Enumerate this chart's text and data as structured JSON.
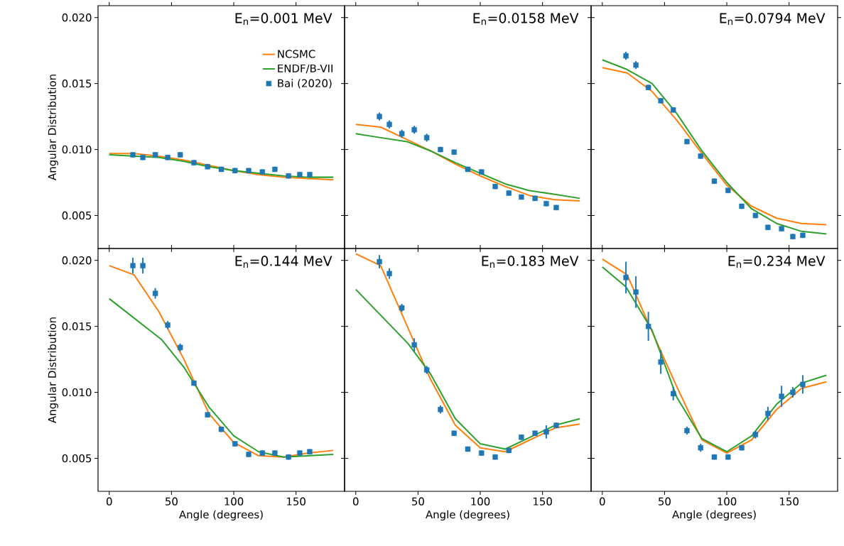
{
  "chart_data": [
    {
      "type": "line",
      "title": "E$_{n}$=0.001 MeV",
      "ylabel": "Angular Distribution",
      "xlim": [
        -9,
        189
      ],
      "ylim": [
        0.0025,
        0.0209
      ],
      "xticks": [
        0,
        50,
        100,
        150
      ],
      "yticks": [
        {
          "value": 0.005,
          "label": "0.005"
        },
        {
          "value": 0.01,
          "label": "0.010"
        },
        {
          "value": 0.015,
          "label": "0.015"
        },
        {
          "value": 0.02,
          "label": "0.020"
        }
      ],
      "tick_labels": "y",
      "legend": "top right",
      "grid": false,
      "line_style": "solid",
      "series": [
        {
          "name": "NCSMC",
          "marker": "none",
          "color": "#ff7f0e",
          "x": [
            0,
            20,
            40,
            60,
            80,
            100,
            120,
            140,
            160,
            180
          ],
          "values": [
            0.0097,
            0.0097,
            0.0095,
            0.0092,
            0.0088,
            0.0084,
            0.0081,
            0.0079,
            0.0078,
            0.0077
          ]
        },
        {
          "name": "ENDF/B-VII",
          "marker": "none",
          "color": "#2ca02c",
          "x": [
            0,
            20,
            40,
            60,
            80,
            100,
            120,
            140,
            160,
            180
          ],
          "values": [
            0.0096,
            0.0095,
            0.0094,
            0.0091,
            0.0087,
            0.0084,
            0.0082,
            0.008,
            0.0079,
            0.0079
          ]
        },
        {
          "name": "Bai (2020)",
          "type": "scatter",
          "marker": "square",
          "color": "#1f77b4",
          "x": [
            19,
            27,
            37,
            47,
            57,
            68,
            79,
            90,
            101,
            112,
            123,
            133,
            144,
            153,
            161
          ],
          "values": [
            0.0096,
            0.0094,
            0.0096,
            0.0094,
            0.0096,
            0.009,
            0.0087,
            0.0085,
            0.0084,
            0.0084,
            0.0083,
            0.0085,
            0.008,
            0.0081,
            0.0081
          ],
          "errors": [
            0.0002,
            0.0002,
            0.0002,
            0.0002,
            0.0002,
            0.0002,
            0.0002,
            0.0002,
            0.0002,
            0.0002,
            0.0002,
            0.0002,
            0.0002,
            0.0002,
            0.0002
          ]
        }
      ]
    },
    {
      "type": "line",
      "title": "E$_{n}$=0.0158 MeV",
      "xlim": [
        -9,
        189
      ],
      "ylim": [
        0.0025,
        0.0209
      ],
      "xticks": [
        0,
        50,
        100,
        150
      ],
      "yticks": [
        0.005,
        0.01,
        0.015,
        0.02
      ],
      "tick_labels": false,
      "grid": false,
      "line_style": "solid",
      "series": [
        {
          "marker": "none",
          "color": "#ff7f0e",
          "x": [
            0,
            20,
            40,
            60,
            80,
            100,
            120,
            140,
            160,
            180
          ],
          "values": [
            0.0119,
            0.0117,
            0.0108,
            0.0099,
            0.0089,
            0.008,
            0.0072,
            0.0065,
            0.0062,
            0.0061
          ]
        },
        {
          "marker": "none",
          "color": "#2ca02c",
          "x": [
            0,
            20,
            41,
            60,
            80,
            100,
            120,
            139,
            160,
            180
          ],
          "values": [
            0.0112,
            0.0109,
            0.0106,
            0.0099,
            0.009,
            0.0082,
            0.0074,
            0.0069,
            0.0066,
            0.0063
          ]
        },
        {
          "type": "scatter",
          "marker": "square",
          "color": "#1f77b4",
          "x": [
            19,
            27,
            37,
            47,
            57,
            68,
            79,
            90,
            101,
            112,
            123,
            133,
            144,
            153,
            161
          ],
          "values": [
            0.0125,
            0.0119,
            0.0112,
            0.0115,
            0.0109,
            0.01,
            0.0098,
            0.0085,
            0.0083,
            0.0072,
            0.0067,
            0.0064,
            0.0063,
            0.0059,
            0.0056
          ],
          "errors": [
            0.0003,
            0.0003,
            0.0003,
            0.0003,
            0.0003,
            0.0002,
            0.0002,
            0.0002,
            0.0002,
            0.0002,
            0.0002,
            0.0002,
            0.0002,
            0.0002,
            0.0002
          ]
        }
      ]
    },
    {
      "type": "line",
      "title": "E$_{n}$=0.0794 MeV",
      "xlim": [
        -9,
        189
      ],
      "ylim": [
        0.0025,
        0.0209
      ],
      "xticks": [
        0,
        50,
        100,
        150
      ],
      "yticks": [
        0.005,
        0.01,
        0.015,
        0.02
      ],
      "tick_labels": false,
      "grid": false,
      "line_style": "solid",
      "series": [
        {
          "marker": "none",
          "color": "#ff7f0e",
          "x": [
            0,
            20,
            40,
            60,
            80,
            100,
            120,
            140,
            160,
            180
          ],
          "values": [
            0.0162,
            0.0158,
            0.0144,
            0.0122,
            0.0097,
            0.0073,
            0.0057,
            0.0048,
            0.0044,
            0.0043
          ]
        },
        {
          "marker": "none",
          "color": "#2ca02c",
          "x": [
            0,
            19,
            40,
            60,
            80,
            100,
            120,
            140,
            160,
            180
          ],
          "values": [
            0.0168,
            0.0161,
            0.015,
            0.0127,
            0.0099,
            0.0075,
            0.0055,
            0.0044,
            0.0038,
            0.0036
          ]
        },
        {
          "type": "scatter",
          "marker": "square",
          "color": "#1f77b4",
          "x": [
            19,
            27,
            37,
            47,
            57,
            68,
            79,
            90,
            101,
            112,
            123,
            133,
            144,
            153,
            161
          ],
          "values": [
            0.0171,
            0.0164,
            0.0147,
            0.0137,
            0.013,
            0.0106,
            0.0095,
            0.0076,
            0.0069,
            0.0057,
            0.005,
            0.0041,
            0.004,
            0.0034,
            0.0035
          ],
          "errors": [
            0.0003,
            0.0003,
            0.0002,
            0.0002,
            0.0002,
            0.0002,
            0.0002,
            0.0002,
            0.0002,
            0.0002,
            0.0002,
            0.0002,
            0.0002,
            0.0002,
            0.0002
          ]
        }
      ]
    },
    {
      "type": "line",
      "title": "E$_{n}$=0.144 MeV",
      "xlabel": "Angle (degrees)",
      "ylabel": "Angular Distribution",
      "xlim": [
        -9,
        189
      ],
      "ylim": [
        0.0025,
        0.0209
      ],
      "xticks": [
        0,
        50,
        100,
        150
      ],
      "yticks": [
        {
          "value": 0.005,
          "label": "0.005"
        },
        {
          "value": 0.01,
          "label": "0.010"
        },
        {
          "value": 0.015,
          "label": "0.015"
        },
        {
          "value": 0.02,
          "label": "0.020"
        }
      ],
      "grid": false,
      "line_style": "solid",
      "series": [
        {
          "marker": "none",
          "color": "#ff7f0e",
          "x": [
            0,
            20,
            40,
            60,
            80,
            100,
            120,
            140,
            160,
            180
          ],
          "values": [
            0.0196,
            0.0189,
            0.0161,
            0.0125,
            0.0084,
            0.0062,
            0.0052,
            0.0051,
            0.0054,
            0.0056
          ]
        },
        {
          "marker": "none",
          "color": "#2ca02c",
          "x": [
            0,
            42,
            60,
            80,
            100,
            120,
            140,
            160,
            180
          ],
          "values": [
            0.0171,
            0.014,
            0.0119,
            0.0089,
            0.0067,
            0.0055,
            0.0051,
            0.0052,
            0.0053
          ]
        },
        {
          "type": "scatter",
          "marker": "square",
          "color": "#1f77b4",
          "x": [
            19,
            27,
            37,
            47,
            57,
            68,
            79,
            90,
            101,
            112,
            123,
            133,
            144,
            153,
            161
          ],
          "values": [
            0.0196,
            0.0196,
            0.0175,
            0.0151,
            0.0134,
            0.0107,
            0.0083,
            0.0072,
            0.0061,
            0.0053,
            0.0054,
            0.0054,
            0.0051,
            0.0054,
            0.0055
          ],
          "errors": [
            0.0006,
            0.0006,
            0.0004,
            0.0003,
            0.0003,
            0.0002,
            0.0002,
            0.0002,
            0.0002,
            0.0002,
            0.0002,
            0.0002,
            0.0002,
            0.0002,
            0.0002
          ]
        }
      ]
    },
    {
      "type": "line",
      "title": "E$_{n}$=0.183 MeV",
      "xlabel": "Angle (degrees)",
      "xlim": [
        -9,
        189
      ],
      "ylim": [
        0.0025,
        0.0209
      ],
      "xticks": [
        0,
        50,
        100,
        150
      ],
      "yticks": [
        0.005,
        0.01,
        0.015,
        0.02
      ],
      "tick_labels": "x",
      "grid": false,
      "line_style": "solid",
      "series": [
        {
          "marker": "none",
          "color": "#ff7f0e",
          "x": [
            0,
            20,
            40,
            60,
            80,
            100,
            120,
            140,
            160,
            180
          ],
          "values": [
            0.0205,
            0.0196,
            0.0153,
            0.011,
            0.0075,
            0.0058,
            0.0055,
            0.0064,
            0.0073,
            0.0076
          ]
        },
        {
          "marker": "none",
          "color": "#2ca02c",
          "x": [
            0,
            42,
            60,
            80,
            100,
            120,
            140,
            160,
            180
          ],
          "values": [
            0.0178,
            0.0137,
            0.0114,
            0.008,
            0.0061,
            0.0057,
            0.0066,
            0.0075,
            0.008
          ]
        },
        {
          "type": "scatter",
          "marker": "square",
          "color": "#1f77b4",
          "x": [
            19,
            27,
            37,
            47,
            57,
            68,
            79,
            90,
            101,
            112,
            123,
            133,
            144,
            153,
            161
          ],
          "values": [
            0.0199,
            0.019,
            0.0164,
            0.0136,
            0.0117,
            0.0087,
            0.0069,
            0.0057,
            0.0054,
            0.0051,
            0.0056,
            0.0066,
            0.0069,
            0.007,
            0.0075
          ],
          "errors": [
            0.0005,
            0.0004,
            0.0003,
            0.0005,
            0.0003,
            0.0003,
            0.0002,
            0.0002,
            0.0002,
            0.0002,
            0.0002,
            0.0002,
            0.0002,
            0.0005,
            0.0002
          ]
        }
      ]
    },
    {
      "type": "line",
      "title": "E$_{n}$=0.234 MeV",
      "xlabel": "Angle (degrees)",
      "xlim": [
        -9,
        189
      ],
      "ylim": [
        0.0025,
        0.0209
      ],
      "xticks": [
        0,
        50,
        100,
        150
      ],
      "yticks": [
        0.005,
        0.01,
        0.015,
        0.02
      ],
      "tick_labels": "x",
      "grid": false,
      "line_style": "solid",
      "series": [
        {
          "marker": "none",
          "color": "#ff7f0e",
          "x": [
            0,
            20,
            40,
            60,
            80,
            100,
            120,
            140,
            160,
            180
          ],
          "values": [
            0.0201,
            0.0189,
            0.0146,
            0.0104,
            0.0064,
            0.0054,
            0.0064,
            0.0087,
            0.0103,
            0.0108
          ]
        },
        {
          "marker": "none",
          "color": "#2ca02c",
          "x": [
            0,
            19,
            40,
            60,
            80,
            100,
            120,
            140,
            160,
            180
          ],
          "values": [
            0.0195,
            0.018,
            0.0147,
            0.0096,
            0.0065,
            0.0055,
            0.0067,
            0.0091,
            0.0107,
            0.0113
          ]
        },
        {
          "type": "scatter",
          "marker": "square",
          "color": "#1f77b4",
          "x": [
            19,
            27,
            37,
            47,
            57,
            68,
            79,
            90,
            101,
            112,
            123,
            133,
            144,
            153,
            161
          ],
          "values": [
            0.0187,
            0.0176,
            0.015,
            0.0123,
            0.0099,
            0.0071,
            0.0058,
            0.0051,
            0.0051,
            0.0058,
            0.0068,
            0.0084,
            0.0097,
            0.01,
            0.0106
          ],
          "errors": [
            0.0012,
            0.0012,
            0.0011,
            0.0009,
            0.0005,
            0.0003,
            0.0003,
            0.0002,
            0.0002,
            0.0002,
            0.0003,
            0.0005,
            0.0008,
            0.0004,
            0.0007
          ]
        }
      ]
    }
  ]
}
